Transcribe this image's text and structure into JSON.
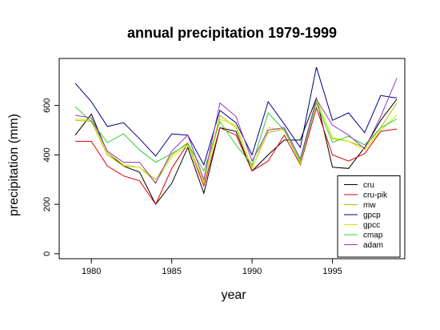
{
  "chart_data": {
    "type": "line",
    "title": "annual precipitation 1979-1999",
    "xlabel": "year",
    "ylabel": "precipitation (mm)",
    "x": [
      1979,
      1980,
      1981,
      1982,
      1983,
      1984,
      1985,
      1986,
      1987,
      1988,
      1989,
      1990,
      1991,
      1992,
      1993,
      1994,
      1995,
      1996,
      1997,
      1998,
      1999
    ],
    "xlim": [
      1978,
      1999.5
    ],
    "ylim": [
      -20,
      790
    ],
    "xticks": [
      1980,
      1985,
      1990,
      1995
    ],
    "yticks": [
      0,
      200,
      400,
      600
    ],
    "legend_position": "bottom-right",
    "grid": false,
    "series": [
      {
        "name": "cru",
        "color": "#000000",
        "values": [
          480,
          565,
          410,
          355,
          330,
          200,
          285,
          430,
          245,
          510,
          495,
          335,
          400,
          460,
          460,
          630,
          350,
          345,
          430,
          540,
          625
        ]
      },
      {
        "name": "cru-pik",
        "color": "#dd0000",
        "values": [
          455,
          455,
          355,
          315,
          295,
          200,
          345,
          445,
          275,
          510,
          480,
          335,
          375,
          480,
          360,
          590,
          400,
          375,
          405,
          495,
          505
        ]
      },
      {
        "name": "mw",
        "color": "#bbbb00",
        "values": [
          540,
          535,
          400,
          355,
          350,
          300,
          400,
          450,
          290,
          560,
          510,
          350,
          490,
          505,
          370,
          625,
          465,
          455,
          430,
          510,
          610
        ]
      },
      {
        "name": "gpcp",
        "color": "#000080",
        "values": [
          690,
          615,
          515,
          530,
          465,
          395,
          485,
          480,
          360,
          580,
          530,
          400,
          615,
          525,
          430,
          755,
          540,
          570,
          490,
          640,
          630
        ]
      },
      {
        "name": "gpcc",
        "color": "#ccee00",
        "values": [
          545,
          540,
          410,
          360,
          350,
          290,
          390,
          440,
          290,
          545,
          520,
          345,
          510,
          500,
          365,
          620,
          470,
          455,
          420,
          500,
          560
        ]
      },
      {
        "name": "cmap",
        "color": "#33cc33",
        "values": [
          595,
          535,
          450,
          485,
          420,
          370,
          405,
          445,
          335,
          535,
          440,
          360,
          570,
          500,
          375,
          610,
          450,
          475,
          440,
          510,
          545
        ]
      },
      {
        "name": "adam",
        "color": "#9933cc",
        "values": [
          560,
          550,
          415,
          370,
          370,
          285,
          415,
          480,
          300,
          610,
          555,
          375,
          500,
          510,
          385,
          625,
          520,
          480,
          425,
          555,
          710
        ]
      }
    ]
  }
}
